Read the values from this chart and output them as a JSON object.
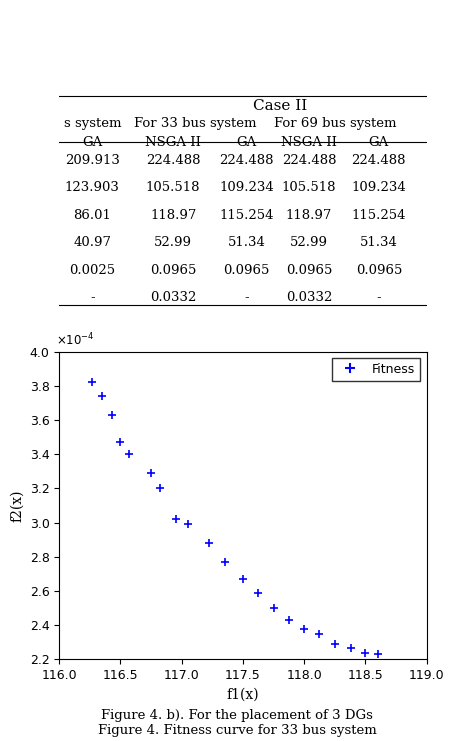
{
  "table": {
    "case_ii_header": "Case II",
    "subheaders": [
      "For 33 bus system",
      "For 69 bus system"
    ],
    "col_headers": [
      "s system\nGA",
      "NSGA II",
      "GA",
      "NSGA II",
      "GA"
    ],
    "rows": [
      [
        "209.913",
        "224.488",
        "224.488",
        "224.488",
        "224.488"
      ],
      [
        "123.903",
        "105.518",
        "109.234",
        "105.518",
        "109.234"
      ],
      [
        "86.01",
        "118.97",
        "115.254",
        "118.97",
        "115.254"
      ],
      [
        "40.97",
        "52.99",
        "51.34",
        "52.99",
        "51.34"
      ],
      [
        "0.0025",
        "0.0965",
        "0.0965",
        "0.0965",
        "0.0965"
      ],
      [
        "-",
        "0.0332",
        "-",
        "0.0332",
        "-"
      ]
    ]
  },
  "scatter": {
    "x": [
      116.27,
      116.35,
      116.43,
      116.5,
      116.57,
      116.75,
      116.82,
      116.95,
      117.05,
      117.22,
      117.35,
      117.5,
      117.62,
      117.75,
      117.88,
      118.0,
      118.12,
      118.25,
      118.38,
      118.5,
      118.6
    ],
    "y": [
      3.82,
      3.74,
      3.63,
      3.47,
      3.4,
      3.29,
      3.2,
      3.02,
      2.99,
      2.88,
      2.77,
      2.67,
      2.59,
      2.5,
      2.43,
      2.38,
      2.35,
      2.29,
      2.27,
      2.24,
      2.23
    ],
    "xlabel": "f1(x)",
    "ylabel": "f2(x)",
    "xlim": [
      116,
      119
    ],
    "ylim": [
      2.2,
      4.0
    ],
    "ytick_scale": 0.0001,
    "xticks": [
      116,
      116.5,
      117,
      117.5,
      118,
      118.5,
      119
    ],
    "yticks": [
      2.2,
      2.4,
      2.6,
      2.8,
      3.0,
      3.2,
      3.4,
      3.6,
      3.8,
      4.0
    ],
    "legend_label": "Fitness",
    "color": "#0000FF",
    "marker": "+"
  },
  "caption1": "Figure 4. b). For the placement of 3 DGs",
  "caption2": "Figure 4. Fitness curve for 33 bus system",
  "bg_color": "#ffffff"
}
